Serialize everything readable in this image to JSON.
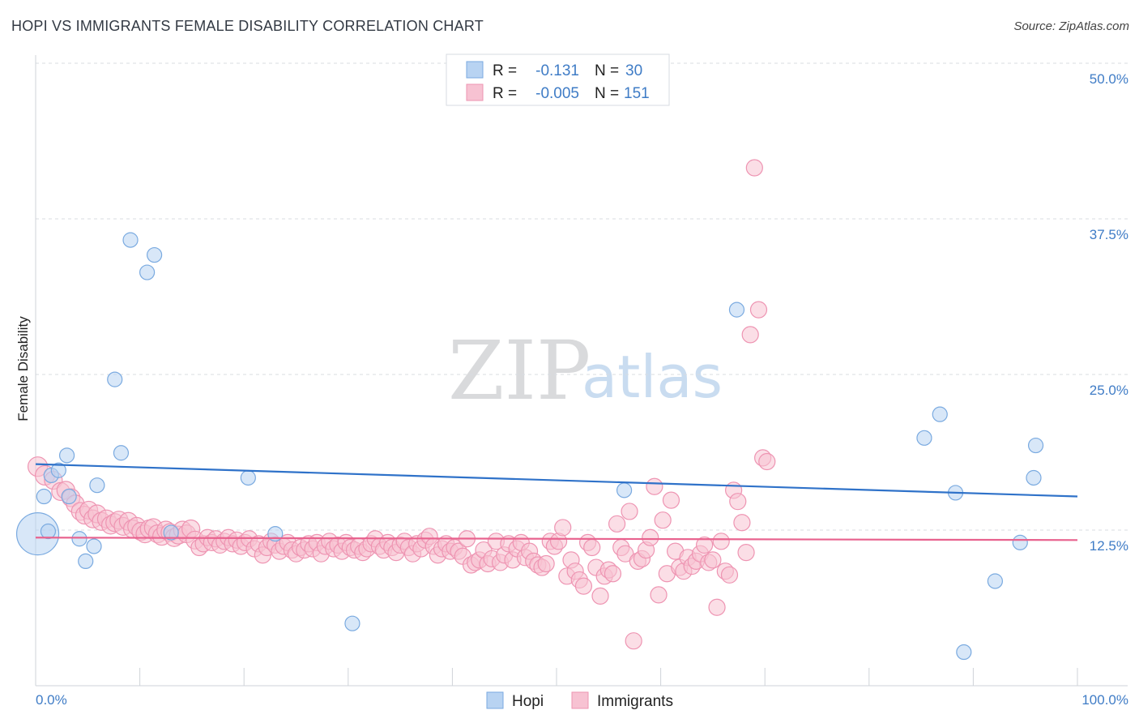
{
  "title": "HOPI VS IMMIGRANTS FEMALE DISABILITY CORRELATION CHART",
  "source": "Source: ZipAtlas.com",
  "watermark": {
    "zip": "ZIP",
    "atlas": "atlas"
  },
  "colors": {
    "hopi_fill": "#b8d3f2",
    "hopi_stroke": "#7aaae0",
    "hopi_line": "#2f72c9",
    "imm_fill": "#f7c2d2",
    "imm_stroke": "#ee94b2",
    "imm_line": "#e8628e",
    "grid": "#d8dce2",
    "axis_label": "#3f7cc6"
  },
  "legend": {
    "rows": [
      {
        "r_label": "R =",
        "r_value": "-0.131",
        "n_label": "N =",
        "n_value": "30"
      },
      {
        "r_label": "R =",
        "r_value": "-0.005",
        "n_label": "N =",
        "n_value": "151"
      }
    ]
  },
  "bottom_legend": [
    "Hopi",
    "Immigrants"
  ],
  "chart_data": {
    "type": "scatter",
    "xlabel": "",
    "ylabel": "Female Disability",
    "xlim": [
      0,
      100
    ],
    "ylim": [
      0,
      50
    ],
    "x_tick_labels": [
      "0.0%",
      "100.0%"
    ],
    "y_ticks": [
      12.5,
      25.0,
      37.5,
      50.0
    ],
    "y_tick_labels": [
      "12.5%",
      "25.0%",
      "37.5%",
      "50.0%"
    ],
    "grid": true,
    "legend_position": "top-center",
    "series": [
      {
        "name": "Hopi",
        "trend": {
          "x": [
            0,
            100
          ],
          "y": [
            17.8,
            15.2
          ]
        },
        "points": [
          [
            0.2,
            12.2,
            26
          ],
          [
            0.8,
            15.2,
            9
          ],
          [
            1.2,
            12.4,
            9
          ],
          [
            1.5,
            16.9,
            9
          ],
          [
            2.2,
            17.3,
            9
          ],
          [
            3.0,
            18.5,
            9
          ],
          [
            3.2,
            15.2,
            9
          ],
          [
            4.2,
            11.8,
            9
          ],
          [
            4.8,
            10.0,
            9
          ],
          [
            5.6,
            11.2,
            9
          ],
          [
            5.9,
            16.1,
            9
          ],
          [
            7.6,
            24.6,
            9
          ],
          [
            8.2,
            18.7,
            9
          ],
          [
            9.1,
            35.8,
            9
          ],
          [
            10.7,
            33.2,
            9
          ],
          [
            11.4,
            34.6,
            9
          ],
          [
            13.0,
            12.3,
            9
          ],
          [
            20.4,
            16.7,
            9
          ],
          [
            23.0,
            12.2,
            9
          ],
          [
            30.4,
            5.0,
            9
          ],
          [
            56.5,
            15.7,
            9
          ],
          [
            67.3,
            30.2,
            9
          ],
          [
            85.3,
            19.9,
            9
          ],
          [
            86.8,
            21.8,
            9
          ],
          [
            88.3,
            15.5,
            9
          ],
          [
            89.1,
            2.7,
            9
          ],
          [
            92.1,
            8.4,
            9
          ],
          [
            94.5,
            11.5,
            9
          ],
          [
            95.8,
            16.7,
            9
          ],
          [
            96.0,
            19.3,
            9
          ]
        ]
      },
      {
        "name": "Immigrants",
        "trend": {
          "x": [
            0,
            100
          ],
          "y": [
            11.9,
            11.7
          ]
        },
        "points": [
          [
            0.2,
            17.6,
            12
          ],
          [
            0.9,
            16.9,
            12
          ],
          [
            1.7,
            16.5,
            11
          ],
          [
            2.4,
            15.6,
            11
          ],
          [
            2.9,
            15.7,
            11
          ],
          [
            3.4,
            15.1,
            11
          ],
          [
            3.8,
            14.6,
            11
          ],
          [
            4.3,
            14.0,
            11
          ],
          [
            4.7,
            13.7,
            11
          ],
          [
            5.1,
            14.1,
            11
          ],
          [
            5.5,
            13.4,
            11
          ],
          [
            5.9,
            13.8,
            11
          ],
          [
            6.3,
            13.2,
            11
          ],
          [
            6.8,
            13.4,
            11
          ],
          [
            7.2,
            12.9,
            11
          ],
          [
            7.6,
            13.1,
            11
          ],
          [
            8.0,
            13.3,
            11
          ],
          [
            8.4,
            12.8,
            11
          ],
          [
            8.9,
            13.2,
            11
          ],
          [
            9.3,
            12.6,
            11
          ],
          [
            9.7,
            12.8,
            11
          ],
          [
            10.1,
            12.4,
            11
          ],
          [
            10.5,
            12.2,
            11
          ],
          [
            10.9,
            12.6,
            11
          ],
          [
            11.3,
            12.7,
            11
          ],
          [
            11.7,
            12.2,
            11
          ],
          [
            12.1,
            12.0,
            11
          ],
          [
            12.5,
            12.5,
            11
          ],
          [
            12.9,
            12.3,
            11
          ],
          [
            13.3,
            11.9,
            11
          ],
          [
            13.7,
            12.1,
            11
          ],
          [
            14.1,
            12.5,
            11
          ],
          [
            14.5,
            12.2,
            11
          ],
          [
            14.9,
            12.6,
            11
          ],
          [
            15.3,
            11.7,
            11
          ],
          [
            15.7,
            11.1,
            10
          ],
          [
            16.1,
            11.4,
            10
          ],
          [
            16.5,
            11.9,
            10
          ],
          [
            16.9,
            11.5,
            10
          ],
          [
            17.3,
            11.8,
            10
          ],
          [
            17.7,
            11.3,
            10
          ],
          [
            18.1,
            11.6,
            10
          ],
          [
            18.5,
            11.9,
            10
          ],
          [
            18.9,
            11.4,
            10
          ],
          [
            19.3,
            11.7,
            10
          ],
          [
            19.7,
            11.2,
            10
          ],
          [
            20.1,
            11.5,
            10
          ],
          [
            20.5,
            11.8,
            10
          ],
          [
            21.0,
            11.0,
            10
          ],
          [
            21.4,
            11.4,
            10
          ],
          [
            21.8,
            10.5,
            10
          ],
          [
            22.2,
            11.1,
            10
          ],
          [
            22.6,
            11.6,
            10
          ],
          [
            23.0,
            11.3,
            10
          ],
          [
            23.4,
            10.8,
            10
          ],
          [
            23.8,
            11.2,
            10
          ],
          [
            24.2,
            11.5,
            10
          ],
          [
            24.6,
            10.9,
            10
          ],
          [
            25.0,
            10.6,
            10
          ],
          [
            25.4,
            11.1,
            10
          ],
          [
            25.8,
            10.9,
            10
          ],
          [
            26.2,
            11.4,
            10
          ],
          [
            26.6,
            11.0,
            10
          ],
          [
            27.0,
            11.5,
            10
          ],
          [
            27.4,
            10.6,
            10
          ],
          [
            27.8,
            11.2,
            10
          ],
          [
            28.2,
            11.6,
            10
          ],
          [
            28.6,
            11.0,
            10
          ],
          [
            29.0,
            11.3,
            10
          ],
          [
            29.4,
            10.8,
            10
          ],
          [
            29.8,
            11.5,
            10
          ],
          [
            30.2,
            11.1,
            10
          ],
          [
            30.6,
            10.9,
            10
          ],
          [
            31.0,
            11.2,
            10
          ],
          [
            31.4,
            10.7,
            10
          ],
          [
            31.8,
            11.0,
            10
          ],
          [
            32.2,
            11.4,
            10
          ],
          [
            32.6,
            11.8,
            10
          ],
          [
            33.0,
            11.2,
            10
          ],
          [
            33.4,
            10.9,
            10
          ],
          [
            33.8,
            11.5,
            10
          ],
          [
            34.2,
            11.1,
            10
          ],
          [
            34.6,
            10.7,
            10
          ],
          [
            35.0,
            11.3,
            10
          ],
          [
            35.4,
            11.6,
            10
          ],
          [
            35.8,
            11.1,
            10
          ],
          [
            36.2,
            10.6,
            10
          ],
          [
            36.6,
            11.4,
            10
          ],
          [
            37.0,
            11.0,
            10
          ],
          [
            37.4,
            11.7,
            10
          ],
          [
            37.8,
            12.0,
            10
          ],
          [
            38.2,
            11.2,
            10
          ],
          [
            38.6,
            10.5,
            10
          ],
          [
            39.0,
            11.0,
            10
          ],
          [
            39.4,
            11.4,
            10
          ],
          [
            39.8,
            10.8,
            10
          ],
          [
            40.2,
            11.1,
            10
          ],
          [
            40.6,
            10.8,
            10
          ],
          [
            41.0,
            10.4,
            10
          ],
          [
            41.4,
            11.8,
            10
          ],
          [
            41.8,
            9.7,
            10
          ],
          [
            42.2,
            9.9,
            10
          ],
          [
            42.6,
            10.1,
            10
          ],
          [
            43.0,
            10.9,
            10
          ],
          [
            43.4,
            9.8,
            10
          ],
          [
            43.8,
            10.2,
            10
          ],
          [
            44.2,
            11.6,
            10
          ],
          [
            44.6,
            9.9,
            10
          ],
          [
            45.0,
            10.5,
            10
          ],
          [
            45.4,
            11.4,
            10
          ],
          [
            45.8,
            10.1,
            10
          ],
          [
            46.2,
            11.0,
            10
          ],
          [
            46.6,
            11.5,
            10
          ],
          [
            47.0,
            10.3,
            10
          ],
          [
            47.4,
            10.8,
            10
          ],
          [
            47.8,
            10.0,
            10
          ],
          [
            48.2,
            9.7,
            10
          ],
          [
            48.6,
            9.5,
            10
          ],
          [
            49.0,
            9.8,
            10
          ],
          [
            49.4,
            11.6,
            10
          ],
          [
            49.8,
            11.2,
            10
          ],
          [
            50.2,
            11.6,
            10
          ],
          [
            50.6,
            12.7,
            10
          ],
          [
            51.0,
            8.8,
            10
          ],
          [
            51.4,
            10.1,
            10
          ],
          [
            51.8,
            9.2,
            10
          ],
          [
            52.2,
            8.5,
            10
          ],
          [
            52.6,
            8.0,
            10
          ],
          [
            53.0,
            11.5,
            10
          ],
          [
            53.4,
            11.1,
            10
          ],
          [
            53.8,
            9.5,
            10
          ],
          [
            54.2,
            7.2,
            10
          ],
          [
            54.6,
            8.8,
            10
          ],
          [
            55.0,
            9.3,
            10
          ],
          [
            55.4,
            9.0,
            10
          ],
          [
            55.8,
            13.0,
            10
          ],
          [
            56.2,
            11.1,
            10
          ],
          [
            56.6,
            10.6,
            10
          ],
          [
            57.0,
            14.0,
            10
          ],
          [
            57.4,
            3.6,
            10
          ],
          [
            57.8,
            10.0,
            10
          ],
          [
            58.2,
            10.2,
            10
          ],
          [
            58.6,
            10.9,
            10
          ],
          [
            59.0,
            11.9,
            10
          ],
          [
            59.4,
            16.0,
            10
          ],
          [
            59.8,
            7.3,
            10
          ],
          [
            60.2,
            13.3,
            10
          ],
          [
            60.6,
            9.0,
            10
          ],
          [
            61.0,
            14.9,
            10
          ],
          [
            61.4,
            10.8,
            10
          ],
          [
            61.8,
            9.5,
            10
          ],
          [
            62.2,
            9.2,
            10
          ],
          [
            62.6,
            10.3,
            10
          ]
        ]
      },
      {
        "name": "",
        "points": [
          [
            63.0,
            9.6,
            10
          ],
          [
            63.4,
            10.0,
            10
          ],
          [
            63.8,
            10.6,
            10
          ],
          [
            64.2,
            11.3,
            10
          ],
          [
            64.6,
            9.9,
            10
          ],
          [
            65.0,
            10.1,
            10
          ],
          [
            65.4,
            6.3,
            10
          ],
          [
            65.8,
            11.6,
            10
          ],
          [
            66.2,
            9.2,
            10
          ],
          [
            66.6,
            8.9,
            10
          ],
          [
            67.0,
            15.7,
            10
          ],
          [
            67.4,
            14.8,
            10
          ],
          [
            67.8,
            13.1,
            10
          ],
          [
            68.2,
            10.7,
            10
          ],
          [
            68.6,
            28.2,
            10
          ],
          [
            69.0,
            41.6,
            10
          ],
          [
            69.4,
            30.2,
            10
          ],
          [
            69.8,
            18.3,
            10
          ],
          [
            70.2,
            18.0,
            10
          ]
        ]
      }
    ]
  }
}
